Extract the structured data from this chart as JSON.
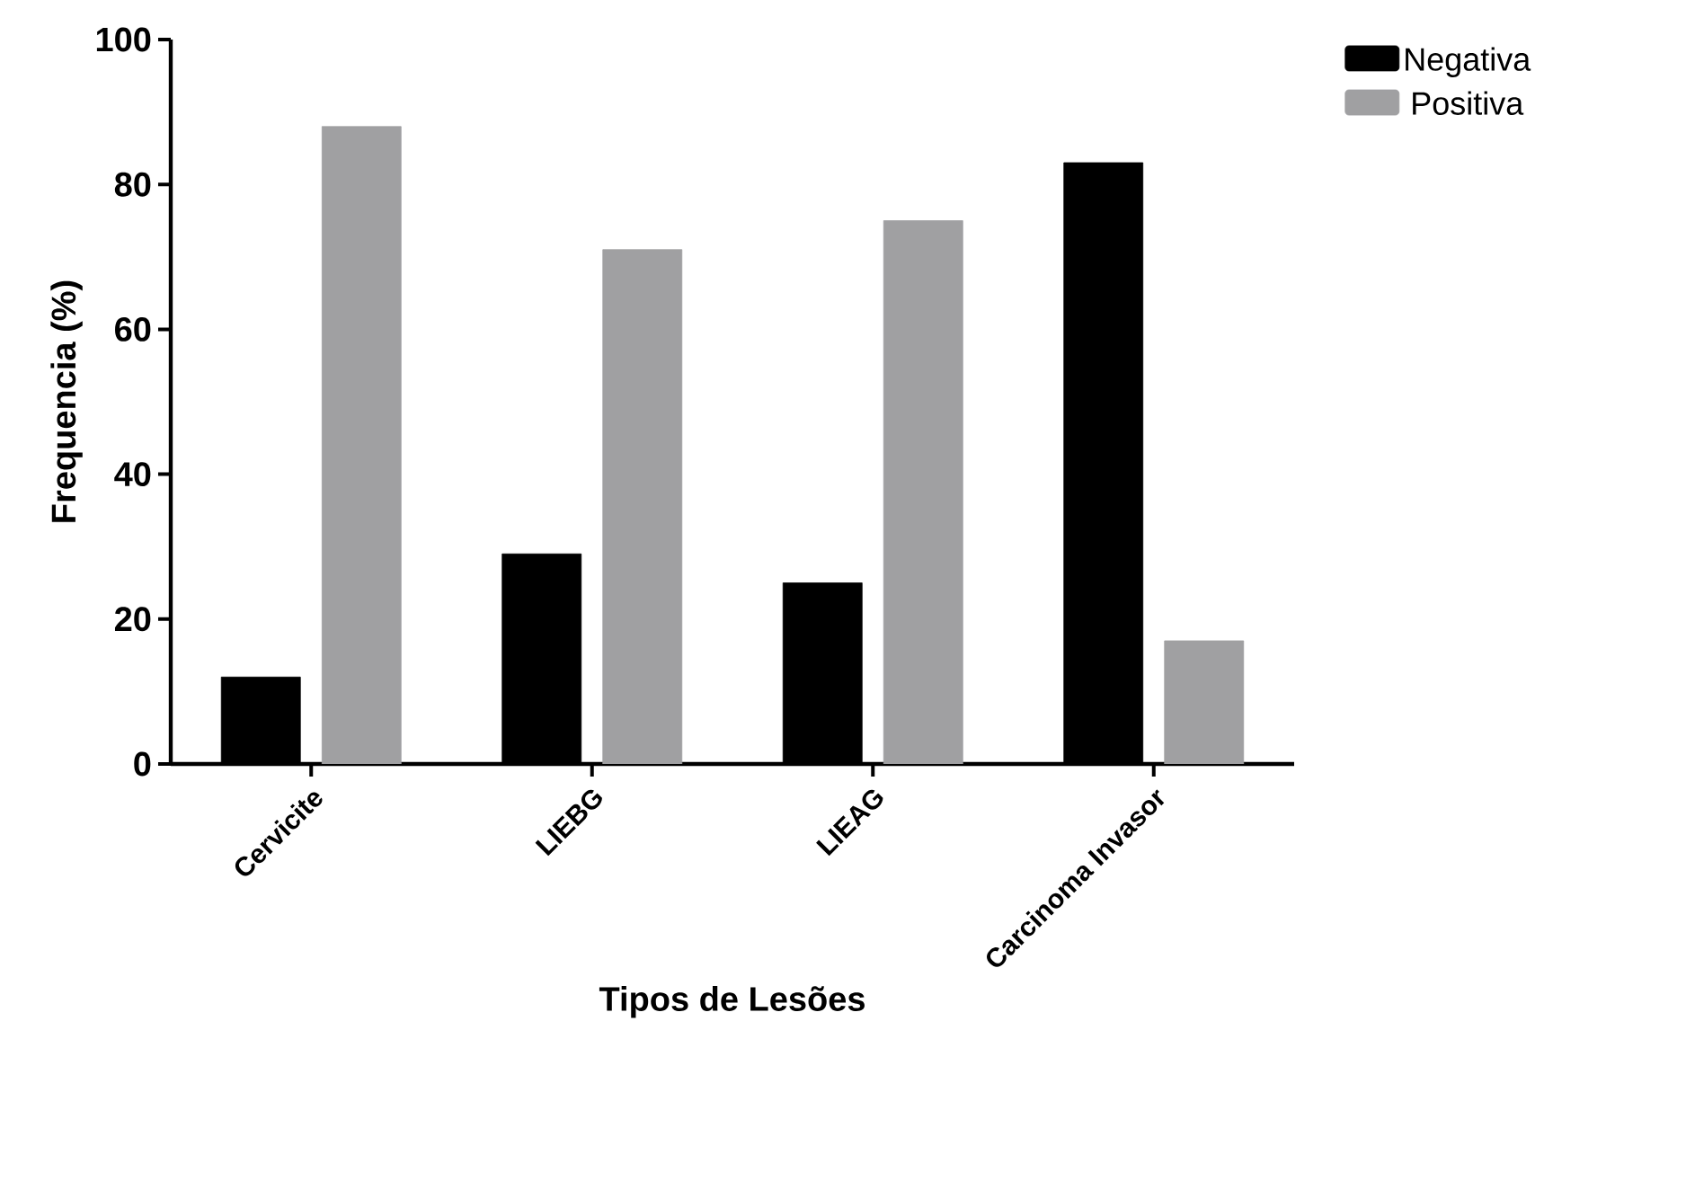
{
  "chart_data": {
    "type": "bar",
    "xlabel": "Tipos de Lesões",
    "ylabel": "Frequencia (%)",
    "categories": [
      "Cervicite",
      "LIEBG",
      "LIEAG",
      "Carcinoma Invasor"
    ],
    "series": [
      {
        "name": "Negativa",
        "color": "#000000",
        "values": [
          12,
          29,
          25,
          83
        ]
      },
      {
        "name": "Positiva",
        "color": "#a0a0a2",
        "values": [
          88,
          71,
          75,
          17
        ]
      }
    ],
    "ylim": [
      0,
      100
    ],
    "yticks": [
      0,
      20,
      40,
      60,
      80,
      100
    ],
    "grid": false,
    "legend": "top right"
  }
}
